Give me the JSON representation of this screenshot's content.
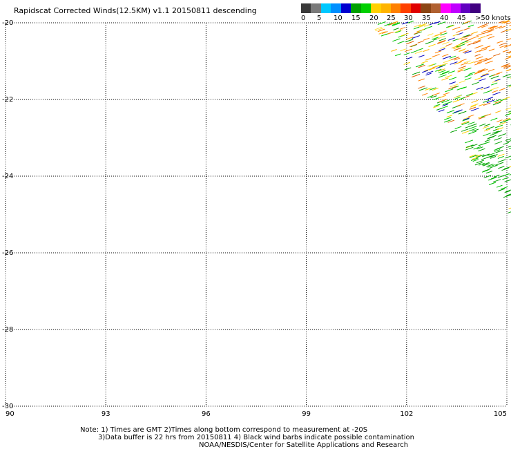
{
  "title": "Rapidscat Corrected Winds(12.5KM) v1.1 20150811 descending",
  "legend": {
    "colors": [
      "#3a3a3a",
      "#7a7a7a",
      "#00c8ff",
      "#0090ff",
      "#0000d0",
      "#00a000",
      "#00d000",
      "#ffd000",
      "#ffb400",
      "#ff8000",
      "#ff4000",
      "#e00000",
      "#8b4513",
      "#b06030",
      "#ff00ff",
      "#c000ff",
      "#6000c0",
      "#400080"
    ],
    "labels": [
      "0",
      "5",
      "10",
      "15",
      "20",
      "25",
      "30",
      "35",
      "40",
      "45",
      ">50 knots"
    ]
  },
  "map": {
    "lat_ticks": [
      "-20",
      "-22",
      "-24",
      "-26",
      "-28",
      "-30"
    ],
    "lon_ticks": [
      "90",
      "93",
      "96",
      "99",
      "102",
      "105"
    ],
    "lat_range": [
      -30,
      -20
    ],
    "lon_range": [
      90,
      105
    ]
  },
  "notes": [
    "Note: 1) Times are GMT 2)Times along bottom correspond to measurement at -20S",
    "3)Data buffer is 22 hrs from 20150811 4) Black wind barbs indicate possible contamination",
    "NOAA/NESDIS/Center for Satellite Applications and Research"
  ]
}
